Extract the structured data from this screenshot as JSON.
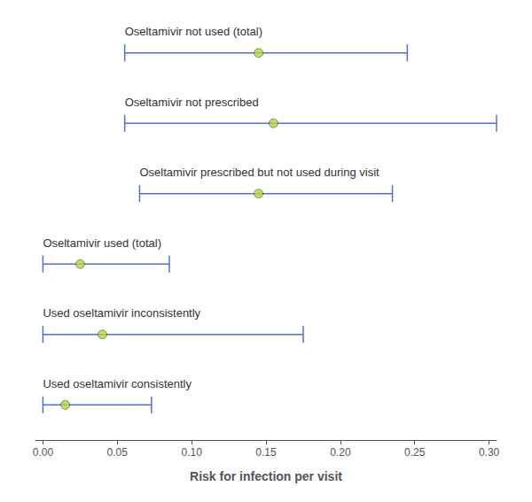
{
  "chart_data": {
    "type": "forest",
    "categories": [
      "Oseltamivir not used (total)",
      "Oseltamivir not prescribed",
      "Oseltamivir prescribed but not used during visit",
      "Oseltamivir used (total)",
      "Used oseltamivir inconsistently",
      "Used oseltamivir consistently"
    ],
    "values": [
      0.145,
      0.155,
      0.145,
      0.025,
      0.04,
      0.015
    ],
    "ci_lower": [
      0.055,
      0.055,
      0.065,
      0.0,
      0.0,
      0.0
    ],
    "ci_upper": [
      0.245,
      0.305,
      0.235,
      0.085,
      0.175,
      0.073
    ],
    "xlim": [
      -0.005,
      0.305
    ],
    "xticks": [
      {
        "value": 0.0,
        "label": "0.00"
      },
      {
        "value": 0.05,
        "label": "0.05"
      },
      {
        "value": 0.1,
        "label": "0.10"
      },
      {
        "value": 0.15,
        "label": "0.15"
      },
      {
        "value": 0.2,
        "label": "0.20"
      },
      {
        "value": 0.25,
        "label": "0.25"
      },
      {
        "value": 0.3,
        "label": "0.30"
      }
    ],
    "xlabel": "Risk for infection per visit",
    "grid": false
  }
}
